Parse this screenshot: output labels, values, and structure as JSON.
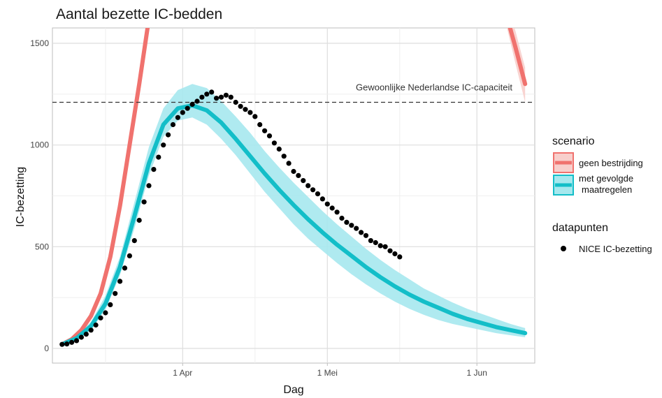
{
  "chart_data": {
    "type": "line",
    "title": "Aantal bezette IC-bedden",
    "xlabel": "Dag",
    "ylabel": "IC-bezetting",
    "x_tick_labels": [
      "1 Apr",
      "1 Mei",
      "1 Jun"
    ],
    "y_ticks": [
      "0",
      "500",
      "1000",
      "1500"
    ],
    "xlim": [
      "2020-03-05",
      "2020-06-13"
    ],
    "ylim": [
      0,
      1500
    ],
    "reference_line": {
      "value": 1210,
      "label": "Gewoonlijke Nederlandse IC-capaciteit"
    },
    "legend_scenario_title": "scenario",
    "legend_points_title": "datapunten",
    "series": [
      {
        "name": "geen bestrijding",
        "color": "#F0726E",
        "x": [
          "2020-03-07",
          "2020-03-09",
          "2020-03-11",
          "2020-03-13",
          "2020-03-15",
          "2020-03-17",
          "2020-03-19",
          "2020-03-21",
          "2020-03-23",
          "2020-03-25",
          "2020-03-27",
          "2020-06-07",
          "2020-06-09",
          "2020-06-11"
        ],
        "y": [
          20,
          45,
          90,
          160,
          270,
          450,
          700,
          1000,
          1300,
          1620,
          1950,
          1650,
          1480,
          1300
        ],
        "y_low": [
          null,
          null,
          null,
          null,
          null,
          null,
          null,
          null,
          null,
          null,
          null,
          1600,
          1400,
          1210
        ],
        "y_high": [
          null,
          null,
          null,
          null,
          null,
          null,
          null,
          null,
          null,
          null,
          null,
          1700,
          1560,
          1380
        ]
      },
      {
        "name": "met gevolgde\nmaatregelen",
        "color": "#13BEC8",
        "x": [
          "2020-03-07",
          "2020-03-10",
          "2020-03-13",
          "2020-03-16",
          "2020-03-19",
          "2020-03-22",
          "2020-03-25",
          "2020-03-28",
          "2020-03-31",
          "2020-04-03",
          "2020-04-06",
          "2020-04-09",
          "2020-04-12",
          "2020-04-15",
          "2020-04-18",
          "2020-04-21",
          "2020-04-24",
          "2020-04-27",
          "2020-04-30",
          "2020-05-03",
          "2020-05-06",
          "2020-05-09",
          "2020-05-12",
          "2020-05-15",
          "2020-05-18",
          "2020-05-21",
          "2020-05-24",
          "2020-05-27",
          "2020-05-30",
          "2020-06-02",
          "2020-06-05",
          "2020-06-08",
          "2020-06-11"
        ],
        "y": [
          20,
          50,
          110,
          220,
          400,
          650,
          910,
          1100,
          1180,
          1195,
          1170,
          1110,
          1030,
          945,
          860,
          780,
          705,
          635,
          570,
          510,
          455,
          400,
          350,
          305,
          265,
          230,
          200,
          170,
          145,
          125,
          105,
          90,
          75
        ],
        "y_low": [
          10,
          40,
          90,
          190,
          360,
          590,
          850,
          1040,
          1120,
          1135,
          1100,
          1030,
          950,
          860,
          770,
          690,
          610,
          540,
          480,
          420,
          365,
          315,
          270,
          230,
          195,
          165,
          140,
          120,
          105,
          90,
          75,
          65,
          55
        ],
        "y_high": [
          30,
          65,
          130,
          260,
          450,
          720,
          990,
          1180,
          1270,
          1300,
          1280,
          1215,
          1140,
          1060,
          970,
          890,
          815,
          745,
          675,
          610,
          550,
          490,
          435,
          385,
          340,
          295,
          260,
          225,
          195,
          170,
          145,
          120,
          100
        ]
      }
    ],
    "points": {
      "name": "NICE IC-bezetting",
      "color": "#000000",
      "x": [
        "2020-03-07",
        "2020-03-08",
        "2020-03-09",
        "2020-03-10",
        "2020-03-11",
        "2020-03-12",
        "2020-03-13",
        "2020-03-14",
        "2020-03-15",
        "2020-03-16",
        "2020-03-17",
        "2020-03-18",
        "2020-03-19",
        "2020-03-20",
        "2020-03-21",
        "2020-03-22",
        "2020-03-23",
        "2020-03-24",
        "2020-03-25",
        "2020-03-26",
        "2020-03-27",
        "2020-03-28",
        "2020-03-29",
        "2020-03-30",
        "2020-03-31",
        "2020-04-01",
        "2020-04-02",
        "2020-04-03",
        "2020-04-04",
        "2020-04-05",
        "2020-04-06",
        "2020-04-07",
        "2020-04-08",
        "2020-04-09",
        "2020-04-10",
        "2020-04-11",
        "2020-04-12",
        "2020-04-13",
        "2020-04-14",
        "2020-04-15",
        "2020-04-16",
        "2020-04-17",
        "2020-04-18",
        "2020-04-19",
        "2020-04-20",
        "2020-04-21",
        "2020-04-22",
        "2020-04-23",
        "2020-04-24",
        "2020-04-25",
        "2020-04-26",
        "2020-04-27",
        "2020-04-28",
        "2020-04-29",
        "2020-04-30",
        "2020-05-01",
        "2020-05-02",
        "2020-05-03",
        "2020-05-04",
        "2020-05-05",
        "2020-05-06",
        "2020-05-07",
        "2020-05-08",
        "2020-05-09",
        "2020-05-10",
        "2020-05-11",
        "2020-05-12",
        "2020-05-13",
        "2020-05-14",
        "2020-05-15",
        "2020-05-16"
      ],
      "y": [
        20,
        22,
        30,
        38,
        55,
        70,
        90,
        115,
        150,
        175,
        215,
        270,
        330,
        395,
        455,
        530,
        630,
        720,
        800,
        880,
        940,
        1000,
        1050,
        1100,
        1135,
        1160,
        1180,
        1200,
        1215,
        1235,
        1250,
        1260,
        1230,
        1235,
        1245,
        1235,
        1210,
        1190,
        1175,
        1160,
        1140,
        1100,
        1070,
        1045,
        1010,
        980,
        945,
        910,
        870,
        850,
        825,
        800,
        780,
        760,
        735,
        710,
        690,
        670,
        640,
        620,
        605,
        590,
        570,
        555,
        530,
        520,
        505,
        500,
        480,
        465,
        450
      ]
    }
  }
}
